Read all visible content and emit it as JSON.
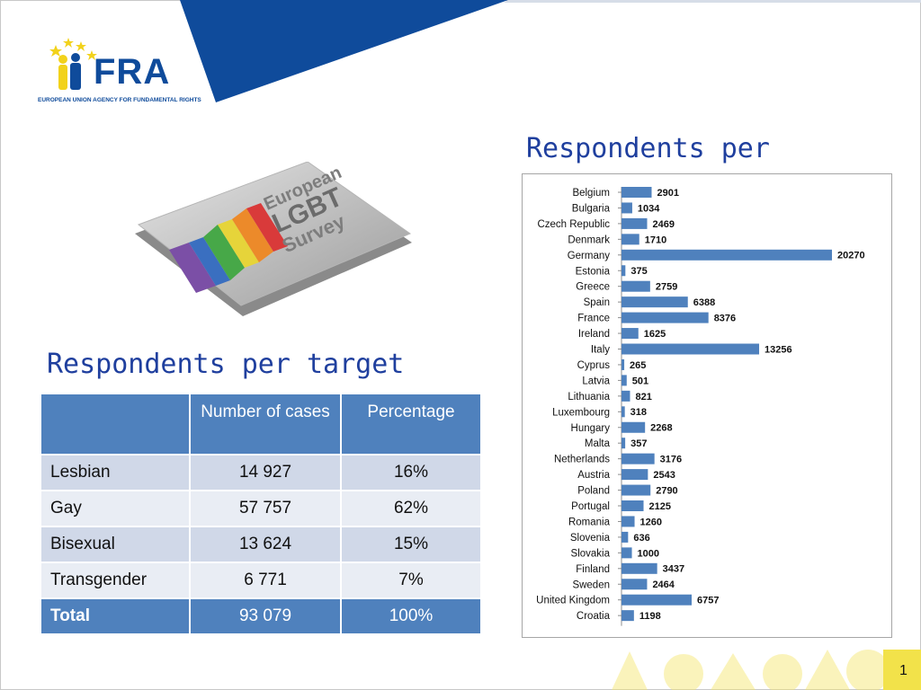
{
  "logo": {
    "text": "FRA",
    "subtitle": "EUROPEAN UNION AGENCY FOR FUNDAMENTAL RIGHTS"
  },
  "survey_image": {
    "lines": [
      "European",
      "LGBT",
      "Survey"
    ]
  },
  "chart_title": "Respondents per",
  "table_title": "Respondents per target",
  "table": {
    "headers": [
      "",
      "Number of cases",
      "Percentage"
    ],
    "rows": [
      {
        "label": "Lesbian",
        "cases": "14 927",
        "pct": "16%"
      },
      {
        "label": "Gay",
        "cases": "57 757",
        "pct": "62%"
      },
      {
        "label": "Bisexual",
        "cases": "13 624",
        "pct": "15%"
      },
      {
        "label": "Transgender",
        "cases": "6 771",
        "pct": "7%"
      }
    ],
    "total": {
      "label": "Total",
      "cases": "93 079",
      "pct": "100%"
    }
  },
  "chart_data": {
    "type": "bar",
    "orientation": "horizontal",
    "title": "",
    "categories": [
      "Belgium",
      "Bulgaria",
      "Czech Republic",
      "Denmark",
      "Germany",
      "Estonia",
      "Greece",
      "Spain",
      "France",
      "Ireland",
      "Italy",
      "Cyprus",
      "Latvia",
      "Lithuania",
      "Luxembourg",
      "Hungary",
      "Malta",
      "Netherlands",
      "Austria",
      "Poland",
      "Portugal",
      "Romania",
      "Slovenia",
      "Slovakia",
      "Finland",
      "Sweden",
      "United Kingdom",
      "Croatia"
    ],
    "values": [
      2901,
      1034,
      2469,
      1710,
      20270,
      375,
      2759,
      6388,
      8376,
      1625,
      13256,
      265,
      501,
      821,
      318,
      2268,
      357,
      3176,
      2543,
      2790,
      2125,
      1260,
      636,
      1000,
      3437,
      2464,
      6757,
      1198
    ],
    "xlim": [
      0,
      20270
    ],
    "bar_color": "#4f81bd",
    "grid": false,
    "legend": "none"
  },
  "page_number": "1",
  "colors": {
    "brand_blue": "#0f4b9b",
    "accent_blue": "#4f81bd",
    "title_blue": "#1f3f9e",
    "footer_yellow": "#f5e66a"
  }
}
